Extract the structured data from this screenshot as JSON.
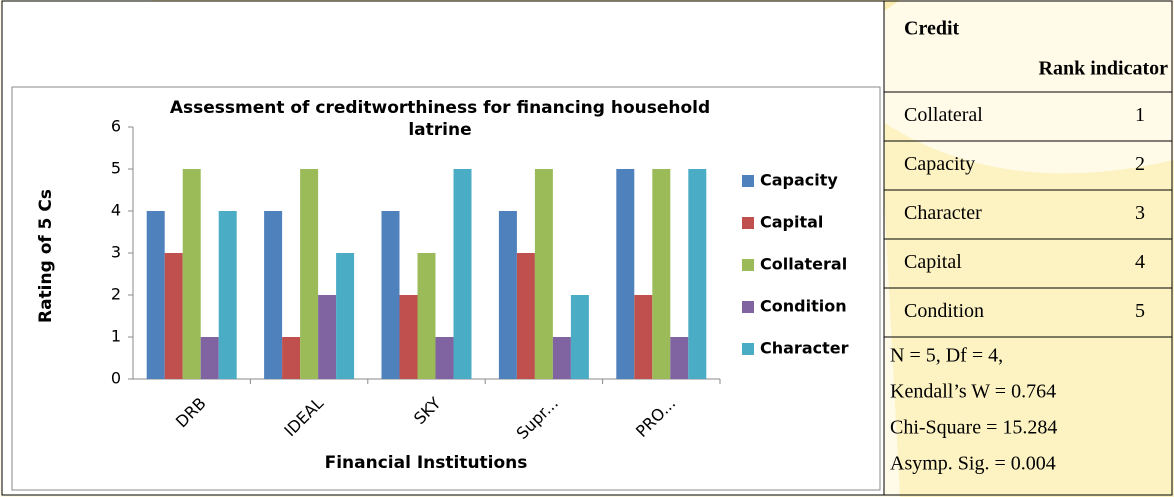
{
  "chart_data": {
    "type": "bar",
    "title": "Assessment of creditworthiness for financing household latrine",
    "x_label": "Financial Institutions",
    "y_label": "Rating of 5 Cs",
    "categories": [
      "DRB",
      "IDEAL",
      "SKY",
      "Supr...",
      "PRO..."
    ],
    "series": [
      {
        "name": "Capacity",
        "color": "#4f81bd",
        "values": [
          4,
          4,
          4,
          4,
          5
        ]
      },
      {
        "name": "Capital",
        "color": "#c0504d",
        "values": [
          3,
          1,
          2,
          3,
          2
        ]
      },
      {
        "name": "Collateral",
        "color": "#9bbb59",
        "values": [
          5,
          5,
          3,
          5,
          5
        ]
      },
      {
        "name": "Condition",
        "color": "#8064a2",
        "values": [
          1,
          2,
          1,
          1,
          1
        ]
      },
      {
        "name": "Character",
        "color": "#4bacc6",
        "values": [
          4,
          3,
          5,
          2,
          5
        ]
      }
    ],
    "ylim": [
      0,
      6
    ],
    "yticks": [
      0,
      1,
      2,
      3,
      4,
      5,
      6
    ],
    "grid": false,
    "legend": "right"
  },
  "table": {
    "header": [
      "Credit",
      "Rank indicator"
    ],
    "rows": [
      [
        "Collateral",
        "1"
      ],
      [
        "Capacity",
        "2"
      ],
      [
        "Character",
        "3"
      ],
      [
        "Capital",
        "4"
      ],
      [
        "Condition",
        "5"
      ]
    ],
    "footer": [
      "N = 5,      Df = 4,",
      "Kendall’s W = 0.764",
      "Chi-Square = 15.284",
      "Asymp. Sig. = 0.004"
    ]
  }
}
